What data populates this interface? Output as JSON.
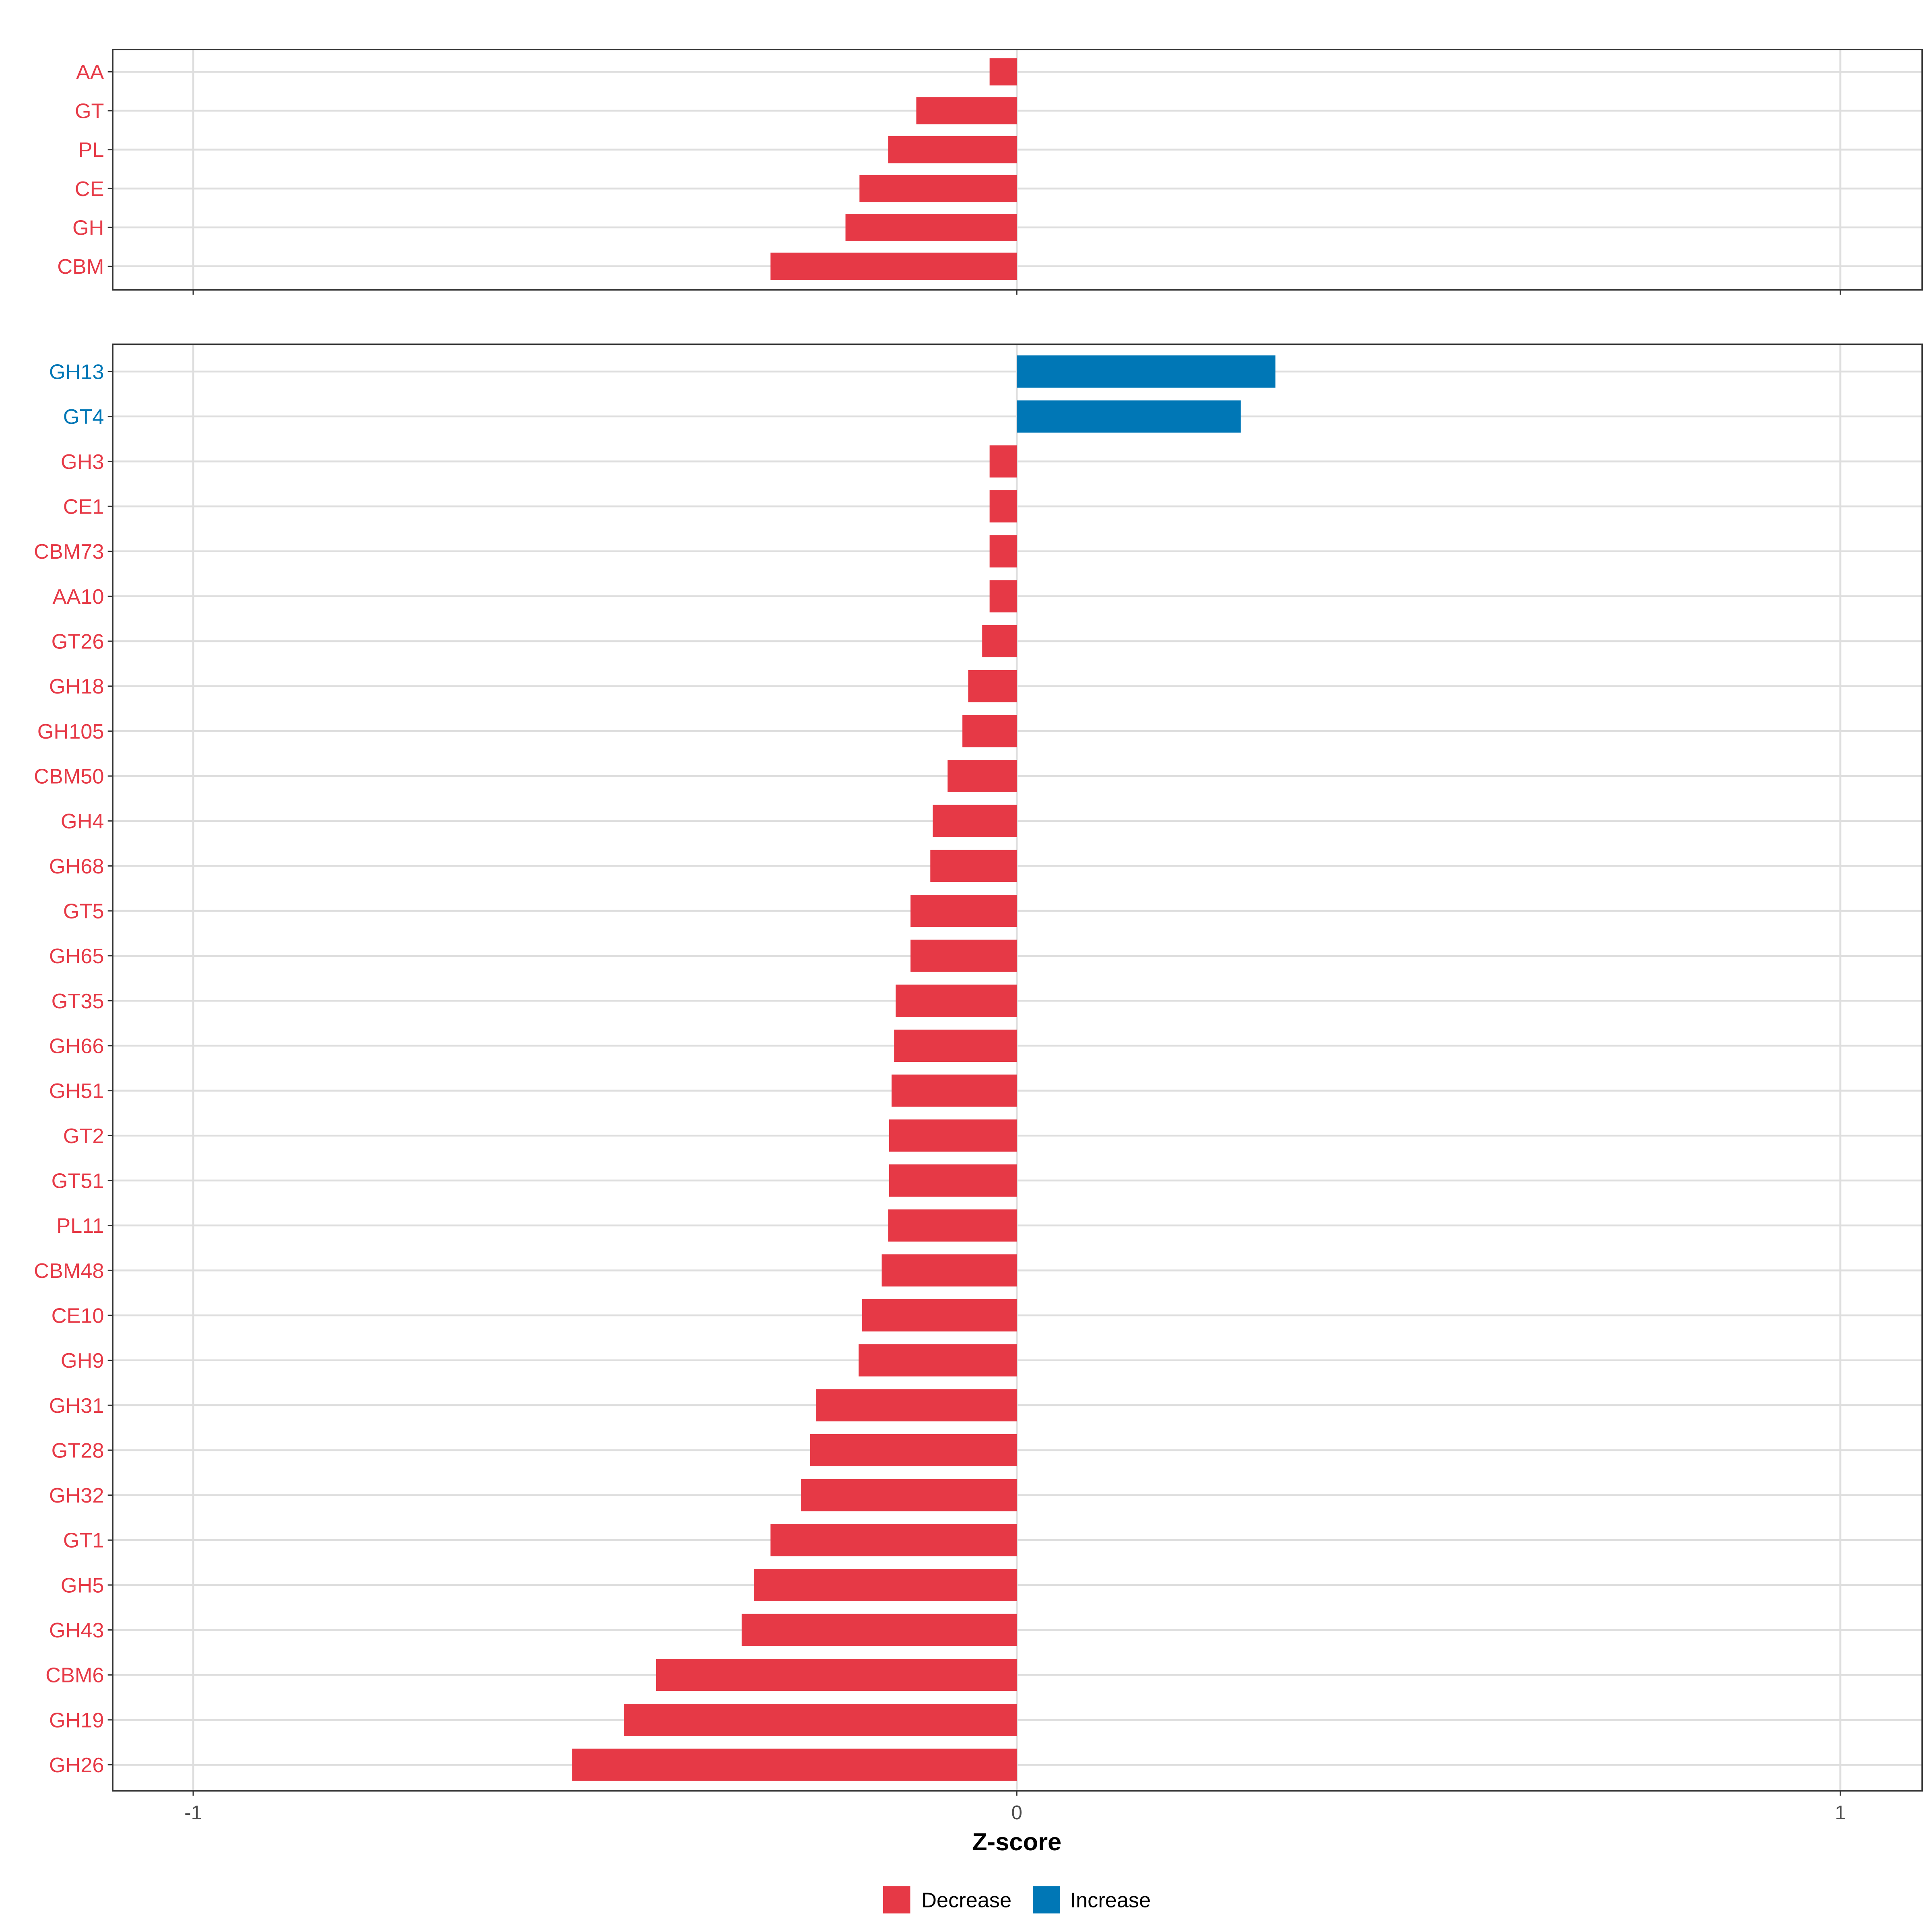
{
  "chart_data": [
    {
      "type": "bar",
      "orientation": "horizontal",
      "panel": "top",
      "categories": [
        "AA",
        "GT",
        "PL",
        "CE",
        "GH",
        "CBM"
      ],
      "values": [
        -0.033,
        -0.122,
        -0.156,
        -0.191,
        -0.208,
        -0.299
      ],
      "xlim": [
        -1.1,
        1.1
      ],
      "grid": true
    },
    {
      "type": "bar",
      "orientation": "horizontal",
      "panel": "bottom",
      "categories": [
        "GH13",
        "GT4",
        "GH3",
        "CE1",
        "CBM73",
        "AA10",
        "GT26",
        "GH18",
        "GH105",
        "CBM50",
        "GH4",
        "GH68",
        "GT5",
        "GH65",
        "GT35",
        "GH66",
        "GH51",
        "GT2",
        "GT51",
        "PL11",
        "CBM48",
        "CE10",
        "GH9",
        "GH31",
        "GT28",
        "GH32",
        "GT1",
        "GH5",
        "GH43",
        "CBM6",
        "GH19",
        "GH26"
      ],
      "values": [
        0.314,
        0.272,
        -0.033,
        -0.033,
        -0.033,
        -0.033,
        -0.042,
        -0.059,
        -0.066,
        -0.084,
        -0.102,
        -0.105,
        -0.129,
        -0.129,
        -0.147,
        -0.149,
        -0.152,
        -0.155,
        -0.155,
        -0.156,
        -0.164,
        -0.188,
        -0.192,
        -0.244,
        -0.251,
        -0.262,
        -0.299,
        -0.319,
        -0.334,
        -0.438,
        -0.477,
        -0.54
      ],
      "xlim": [
        -1.1,
        1.1
      ],
      "grid": true
    }
  ],
  "axis": {
    "xlabel": "Z-score",
    "ticks": [
      -1,
      0,
      1
    ],
    "tick_labels": [
      "-1",
      "0",
      "1"
    ]
  },
  "legend": {
    "placement": "bottom",
    "items": [
      {
        "label": "Decrease",
        "color": "#E63946"
      },
      {
        "label": "Increase",
        "color": "#0077B6"
      }
    ]
  }
}
